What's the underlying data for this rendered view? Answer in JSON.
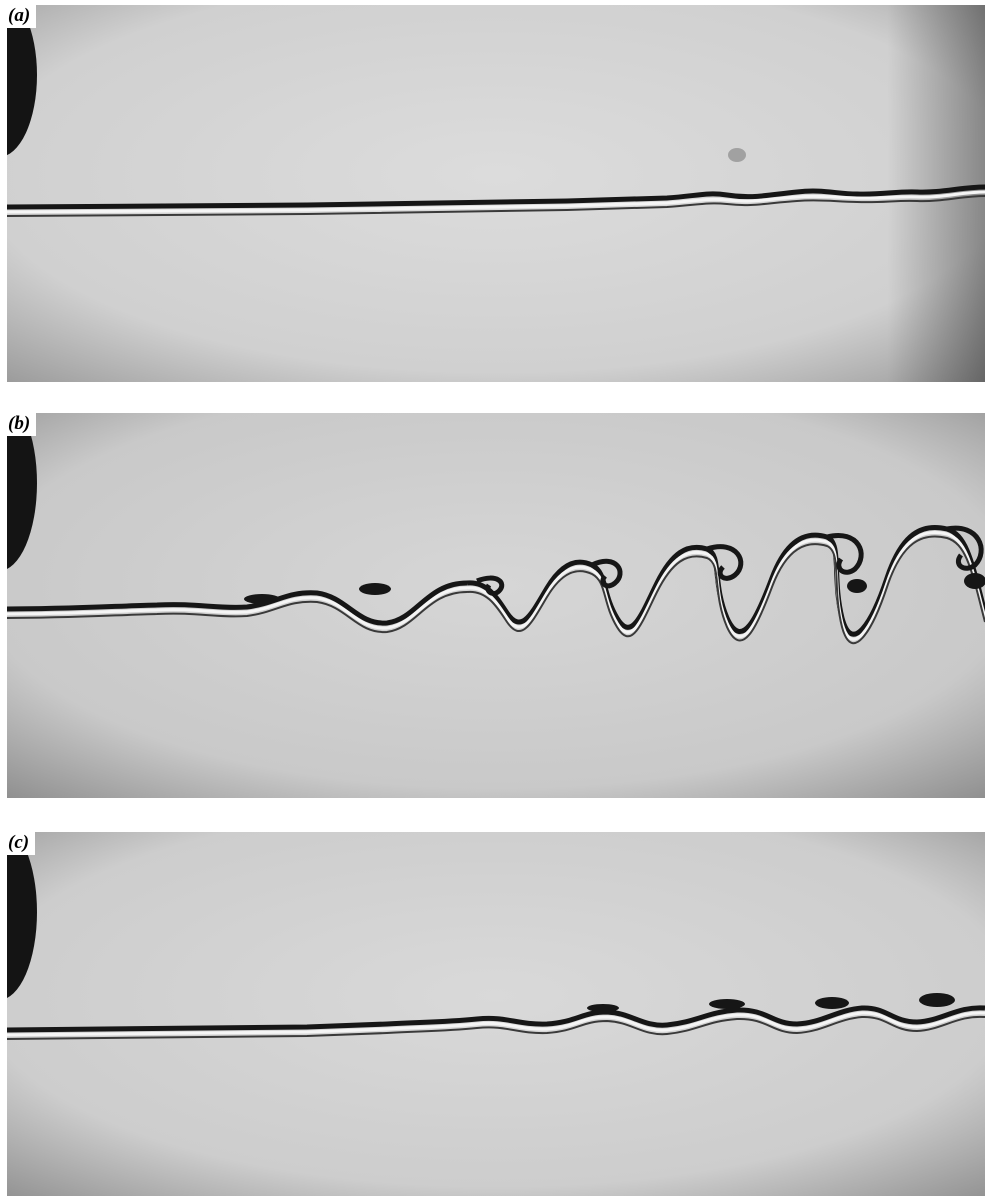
{
  "figure": {
    "panels": [
      {
        "id": "a",
        "label": "(a)"
      },
      {
        "id": "b",
        "label": "(b)"
      },
      {
        "id": "c",
        "label": "(c)"
      }
    ],
    "colors": {
      "background": "#d3d3d3",
      "dye_dark": "#161616",
      "dye_light": "#f5f5f5",
      "cylinder": "#141414"
    }
  }
}
